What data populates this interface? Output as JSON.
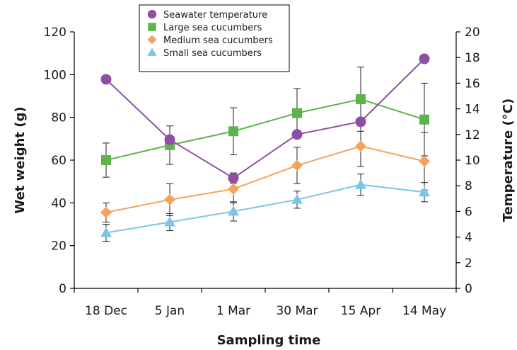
{
  "chart_data": {
    "type": "line",
    "categories": [
      "18 Dec",
      "5 Jan",
      "1 Mar",
      "30 Mar",
      "15 Apr",
      "14 May"
    ],
    "xlabel": "Sampling time",
    "ylabel": "Wet weight (g)",
    "y2label": "Temperature (°C)",
    "ylim": [
      0,
      120
    ],
    "y2lim": [
      0,
      20
    ],
    "yticks": [
      0,
      20,
      40,
      60,
      80,
      100,
      120
    ],
    "y2ticks": [
      0,
      2,
      4,
      6,
      8,
      10,
      12,
      14,
      16,
      18,
      20
    ],
    "grid": false,
    "legend_position": "top-center",
    "series": [
      {
        "name": "Seawater temperature",
        "axis": "right",
        "marker": "circle",
        "color": "#8e4fa3",
        "values": [
          16.3,
          11.6,
          8.6,
          12.0,
          13.0,
          17.9
        ],
        "errors": [
          0,
          0,
          0.4,
          0,
          0,
          0
        ]
      },
      {
        "name": "Large sea cucumbers",
        "axis": "left",
        "marker": "square",
        "color": "#5db54a",
        "values": [
          60,
          67,
          73.5,
          82,
          88.5,
          79
        ],
        "errors": [
          8,
          9,
          11,
          11.5,
          15,
          17
        ]
      },
      {
        "name": "Medium sea cucumbers",
        "axis": "left",
        "marker": "diamond",
        "color": "#f3a35e",
        "values": [
          35.5,
          41.5,
          46.5,
          57.5,
          66.5,
          59.5
        ],
        "errors": [
          4.5,
          7.5,
          6.5,
          8.5,
          9.5,
          13.5
        ]
      },
      {
        "name": "Small sea cucumbers",
        "axis": "left",
        "marker": "triangle",
        "color": "#79c6e6",
        "values": [
          26,
          31,
          36,
          41.5,
          48.5,
          45
        ],
        "errors": [
          4,
          4,
          4.5,
          4,
          5,
          4.5
        ]
      }
    ]
  }
}
